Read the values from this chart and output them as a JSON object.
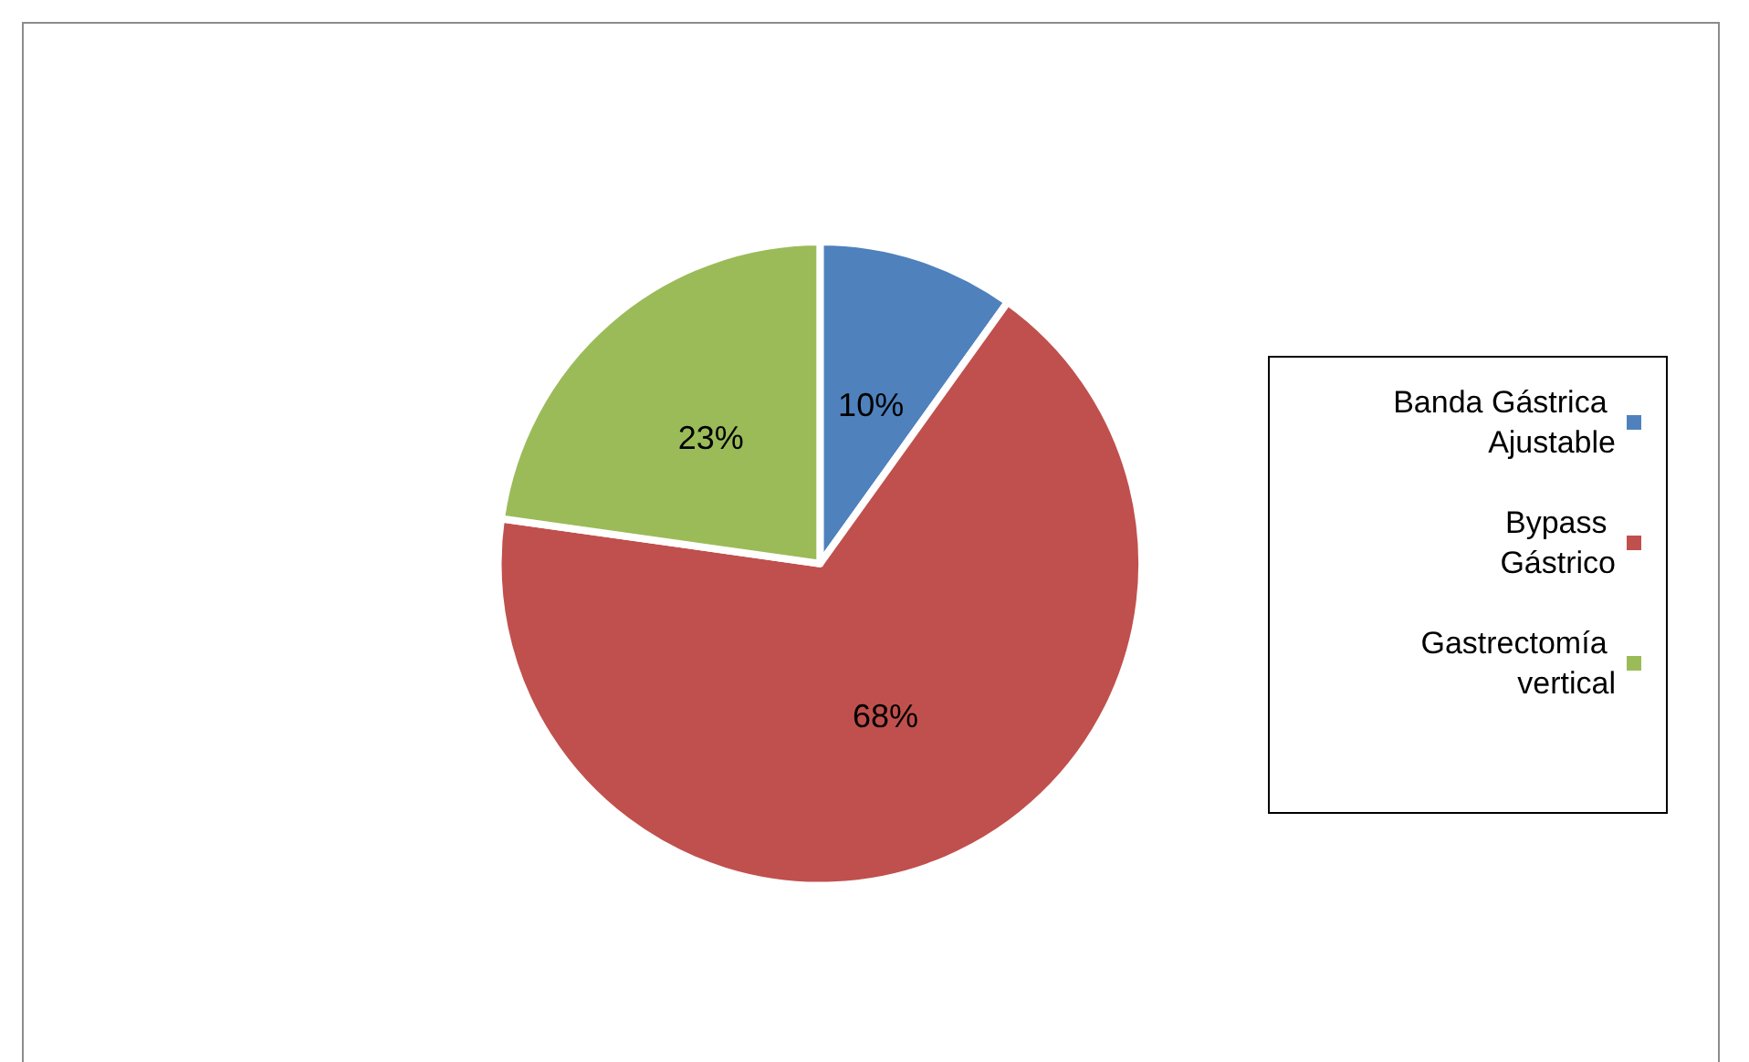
{
  "chart_data": {
    "type": "pie",
    "categories": [
      "Banda Gástrica Ajustable",
      "Bypass Gástrico",
      "Gastrectomía vertical"
    ],
    "values": [
      10,
      68,
      23
    ],
    "value_labels": [
      "10%",
      "68%",
      "23%"
    ],
    "colors": [
      "#4f81bd",
      "#c0504d",
      "#9bbb59"
    ],
    "legend": "right"
  }
}
